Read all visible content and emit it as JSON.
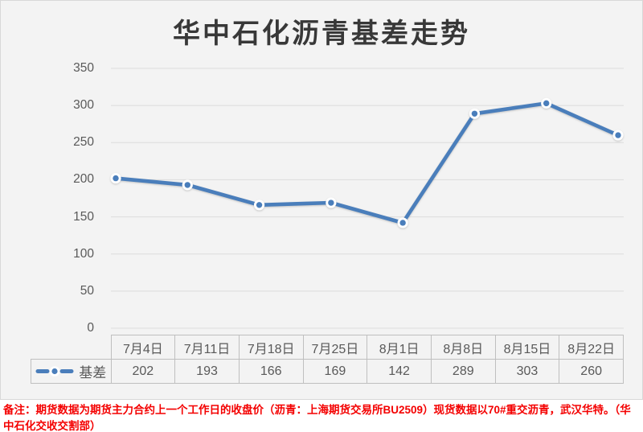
{
  "title": "华中石化沥青基差走势",
  "chart_data": {
    "type": "line",
    "title": "华中石化沥青基差走势",
    "series_name": "基差",
    "categories": [
      "7月4日",
      "7月11日",
      "7月18日",
      "7月25日",
      "8月1日",
      "8月8日",
      "8月15日",
      "8月22日"
    ],
    "values": [
      202,
      193,
      166,
      169,
      142,
      289,
      303,
      260
    ],
    "ylim": [
      0,
      350
    ],
    "yticks": [
      0,
      50,
      100,
      150,
      200,
      250,
      300,
      350
    ],
    "grid": "horizontal",
    "legend_position": "data-table-left",
    "marker": "circle-dot-with-white-ring"
  },
  "note": "备注：期货数据为期货主力合约上一个工作日的收盘价（沥青：上海期货交易所BU2509）现货数据以70#重交沥青，武汉华特。（华中石化交收交割部）",
  "colors": {
    "line": "#4a7ebb",
    "grid": "#dcdcdc",
    "axis_text": "#595959",
    "table_border": "#bfbfbf",
    "panel_background": "#f3f3f3",
    "title_text": "#383838",
    "note_text": "#f40000",
    "marker_ring": "#ffffff"
  }
}
